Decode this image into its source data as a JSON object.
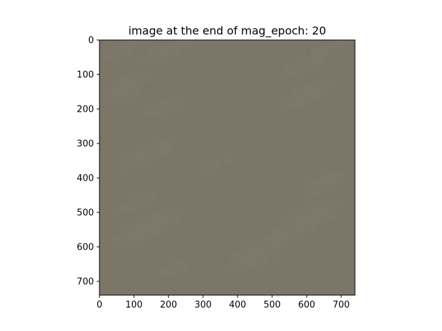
{
  "chart_data": {
    "type": "heatmap",
    "title": "image at the end of mag_epoch: 20",
    "xlabel": "",
    "ylabel": "",
    "xlim": [
      0,
      740
    ],
    "ylim": [
      740,
      0
    ],
    "x_ticks": [
      0,
      100,
      200,
      300,
      400,
      500,
      600,
      700
    ],
    "y_ticks": [
      0,
      100,
      200,
      300,
      400,
      500,
      600,
      700
    ],
    "grid": false,
    "legend": "none",
    "colors": {
      "background": "#7b7668",
      "stripe_light": "#a39d8e",
      "stripe_dark": "#5e594e"
    },
    "texture_regions": [
      {
        "name": "streak-top-left",
        "x": [
          0,
          110
        ],
        "y": [
          0,
          60
        ]
      },
      {
        "name": "streak-top-band",
        "x": [
          100,
          270
        ],
        "y": [
          0,
          70
        ]
      },
      {
        "name": "streak-top-right",
        "x": [
          590,
          730
        ],
        "y": [
          0,
          40
        ]
      },
      {
        "name": "streak-left-mid",
        "x": [
          0,
          150
        ],
        "y": [
          80,
          200
        ]
      },
      {
        "name": "streak-upper-right-1",
        "x": [
          510,
          680
        ],
        "y": [
          30,
          110
        ]
      },
      {
        "name": "streak-upper-right-2",
        "x": [
          520,
          700
        ],
        "y": [
          110,
          200
        ]
      },
      {
        "name": "streak-middle-band",
        "x": [
          130,
          260
        ],
        "y": [
          160,
          230
        ]
      },
      {
        "name": "streak-left-cluster",
        "x": [
          40,
          220
        ],
        "y": [
          290,
          380
        ]
      },
      {
        "name": "streak-center-small",
        "x": [
          300,
          380
        ],
        "y": [
          340,
          380
        ]
      },
      {
        "name": "streak-right-mid",
        "x": [
          590,
          720
        ],
        "y": [
          370,
          460
        ]
      },
      {
        "name": "streak-lower-left-1",
        "x": [
          40,
          180
        ],
        "y": [
          440,
          500
        ]
      },
      {
        "name": "streak-lower-left-2",
        "x": [
          20,
          260
        ],
        "y": [
          490,
          600
        ]
      },
      {
        "name": "streak-lower-right-1",
        "x": [
          480,
          720
        ],
        "y": [
          460,
          580
        ]
      },
      {
        "name": "streak-lower-right-2",
        "x": [
          350,
          560
        ],
        "y": [
          560,
          680
        ]
      },
      {
        "name": "streak-bottom-left",
        "x": [
          170,
          260
        ],
        "y": [
          630,
          700
        ]
      }
    ]
  }
}
